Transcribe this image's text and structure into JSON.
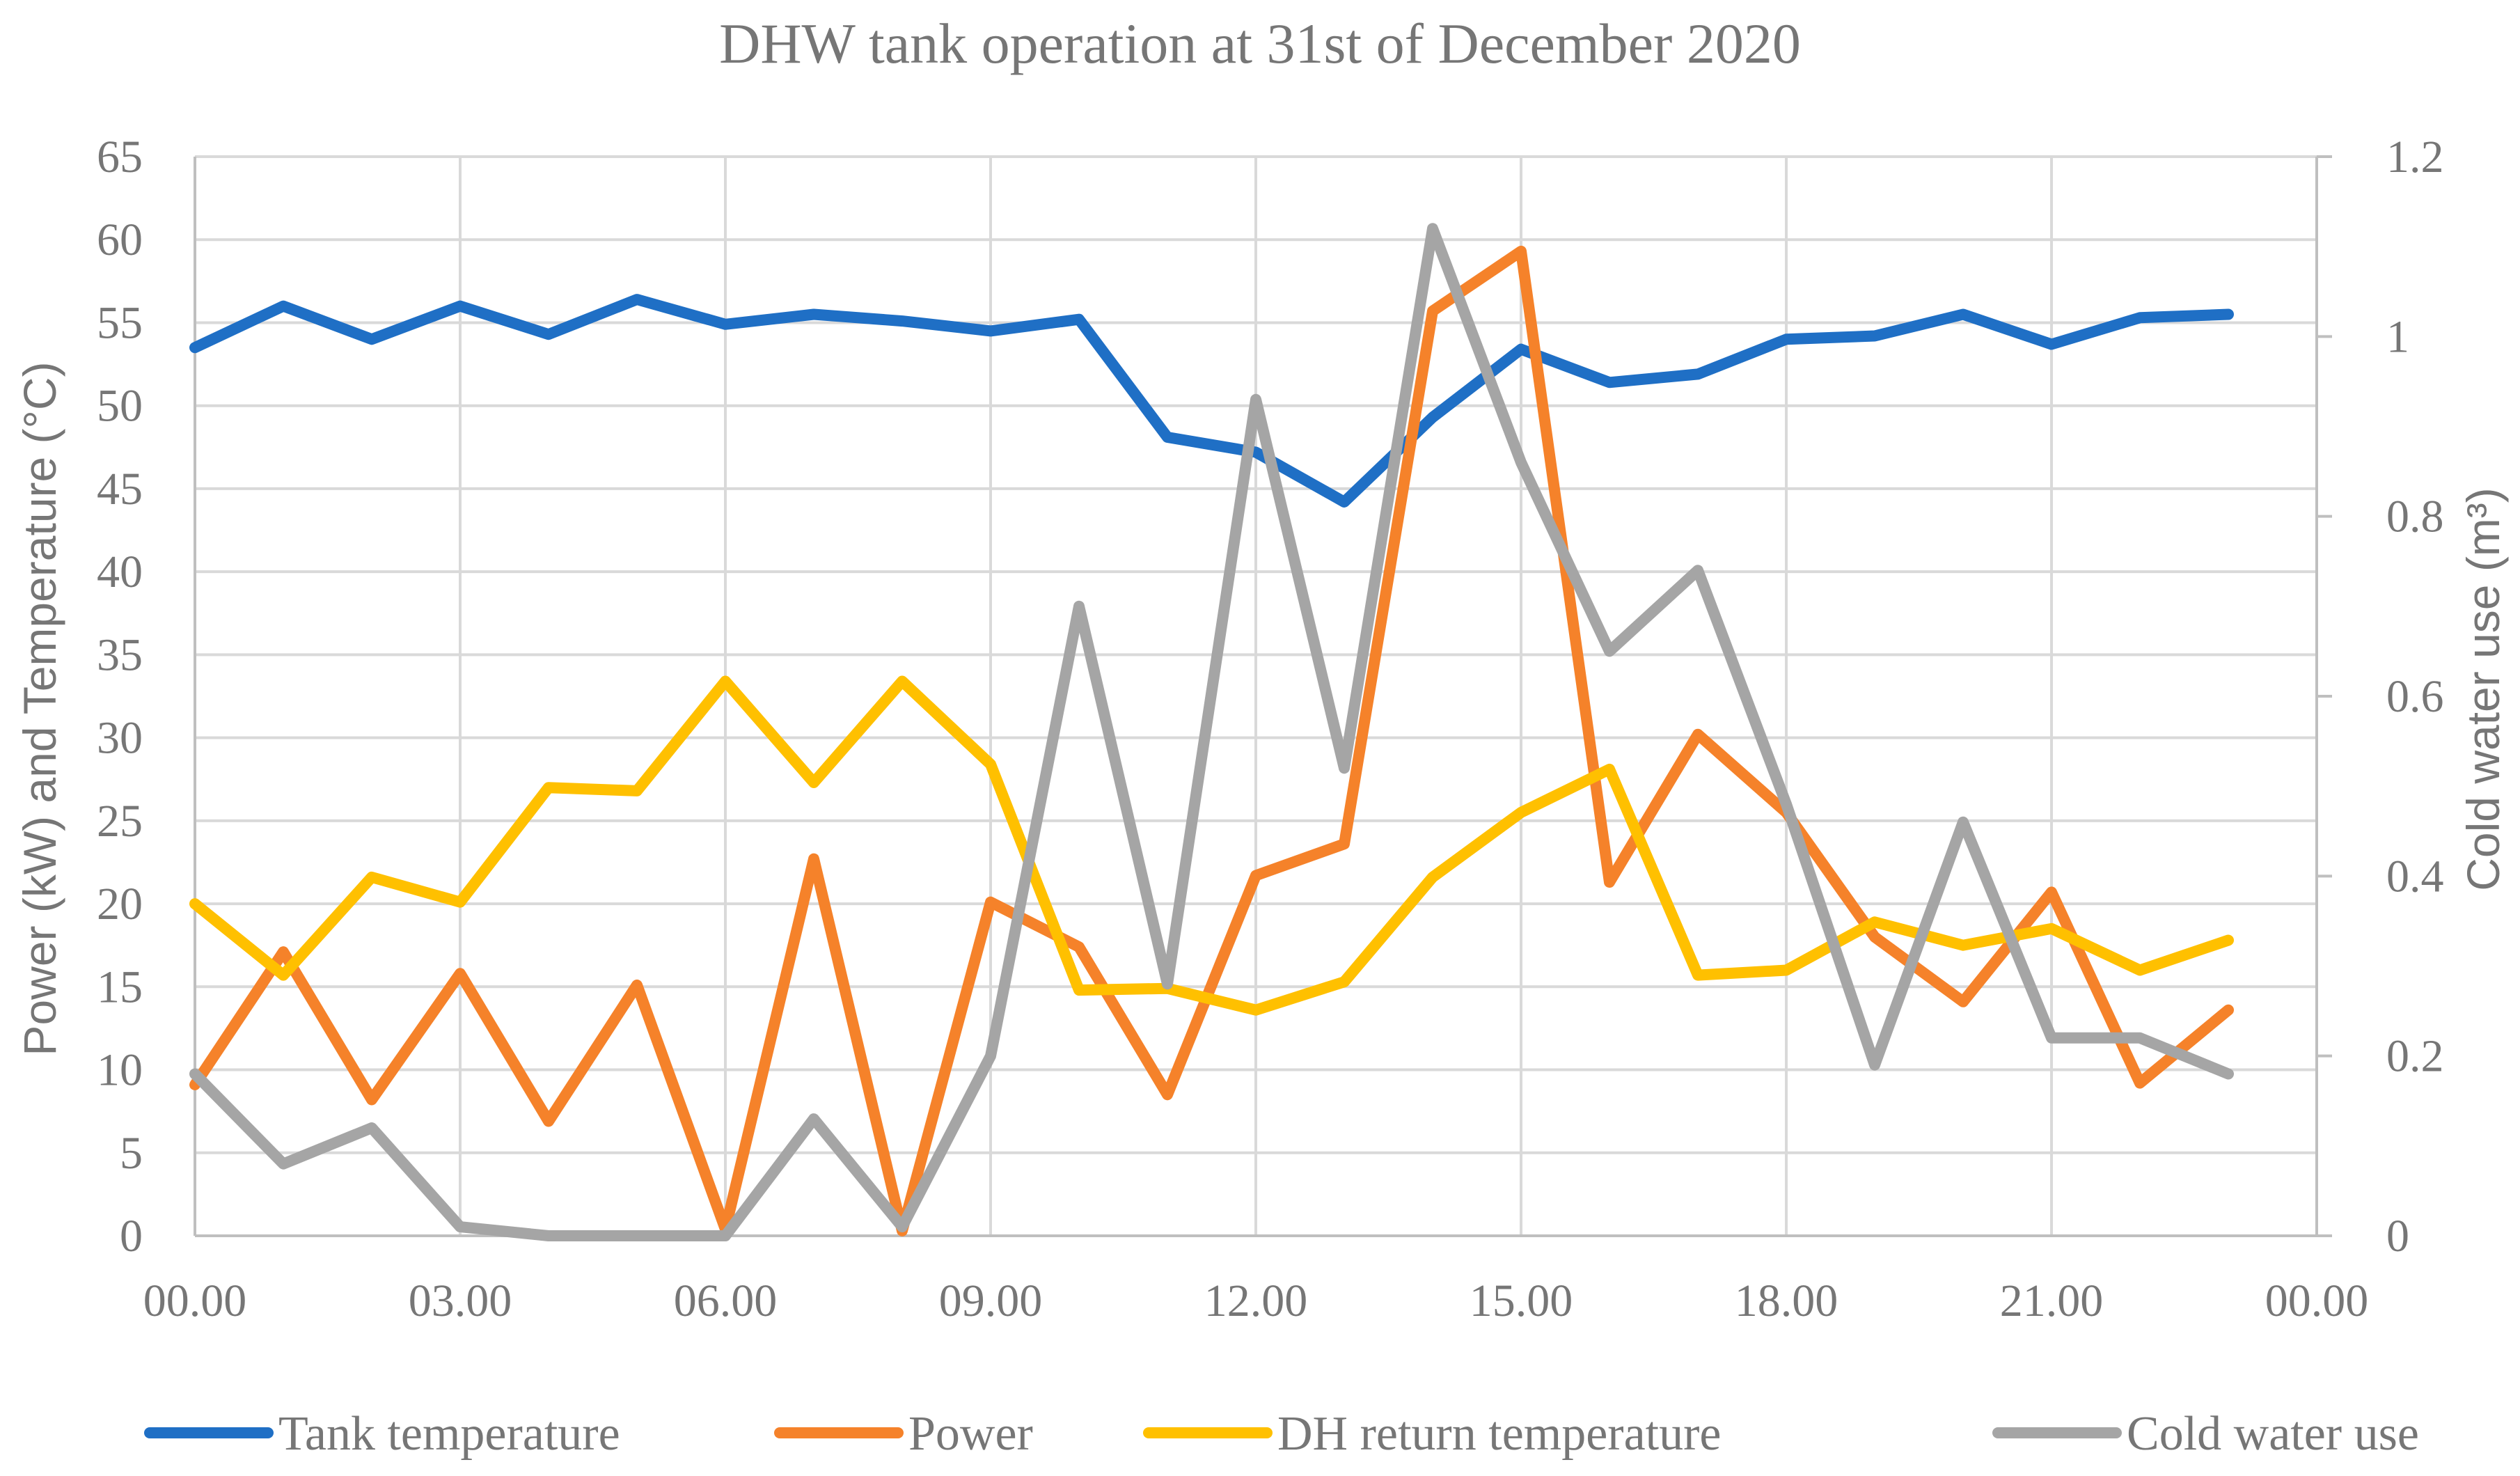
{
  "chart_data": {
    "type": "line",
    "title": "DHW tank operation at 31st of December 2020",
    "xlabel": "",
    "ylabel": "Power (kW) and Temperature (°C)",
    "y2label": "Cold water use (m³)",
    "x_tick_labels": [
      "00.00",
      "03.00",
      "06.00",
      "09.00",
      "12.00",
      "15.00",
      "18.00",
      "21.00",
      "00.00"
    ],
    "x_hours": [
      0,
      1,
      2,
      3,
      4,
      5,
      6,
      7,
      8,
      9,
      10,
      11,
      12,
      13,
      14,
      15,
      16,
      17,
      18,
      19,
      20,
      21,
      22,
      23
    ],
    "xlim": [
      0,
      24
    ],
    "ylim": [
      0,
      65
    ],
    "y_ticks": [
      0,
      5,
      10,
      15,
      20,
      25,
      30,
      35,
      40,
      45,
      50,
      55,
      60,
      65
    ],
    "y2lim": [
      0,
      1.2
    ],
    "y2_ticks": [
      0,
      0.2,
      0.4,
      0.6,
      0.8,
      1,
      1.2
    ],
    "y2_tick_labels": [
      "0",
      "0.2",
      "0.4",
      "0.6",
      "0.8",
      "1",
      "1.2"
    ],
    "grid": true,
    "legend_position": "bottom",
    "series": [
      {
        "name": "Tank temperature",
        "axis": "left",
        "color": "#1f6fc5",
        "values": [
          53.5,
          56.0,
          54.0,
          56.0,
          54.3,
          56.4,
          54.9,
          55.5,
          55.1,
          54.5,
          55.2,
          48.1,
          47.2,
          44.2,
          49.3,
          53.4,
          51.4,
          51.9,
          54.0,
          54.2,
          55.5,
          53.7,
          55.3,
          55.5
        ]
      },
      {
        "name": "Power",
        "axis": "left",
        "color": "#f5822a",
        "values": [
          9.1,
          17.1,
          8.2,
          15.8,
          6.9,
          15.1,
          0.4,
          22.7,
          0.3,
          20.1,
          17.4,
          8.5,
          21.7,
          23.6,
          55.7,
          59.3,
          21.3,
          30.2,
          25.5,
          18.0,
          14.1,
          20.7,
          9.2,
          13.6
        ]
      },
      {
        "name": "DH return temperature",
        "axis": "left",
        "color": "#ffc000",
        "values": [
          20.0,
          15.7,
          21.6,
          20.1,
          27.0,
          26.8,
          33.4,
          27.3,
          33.4,
          28.4,
          14.8,
          14.9,
          13.6,
          15.3,
          21.6,
          25.5,
          28.1,
          15.7,
          16.0,
          18.9,
          17.5,
          18.5,
          16.0,
          17.8
        ]
      },
      {
        "name": "Cold water use",
        "axis": "right",
        "color": "#a5a5a5",
        "values": [
          0.18,
          0.08,
          0.12,
          0.01,
          0.0,
          0.0,
          0.0,
          0.13,
          0.01,
          0.2,
          0.7,
          0.28,
          0.93,
          0.52,
          1.12,
          0.86,
          0.65,
          0.74,
          0.48,
          0.19,
          0.46,
          0.22,
          0.22,
          0.18
        ]
      }
    ]
  }
}
